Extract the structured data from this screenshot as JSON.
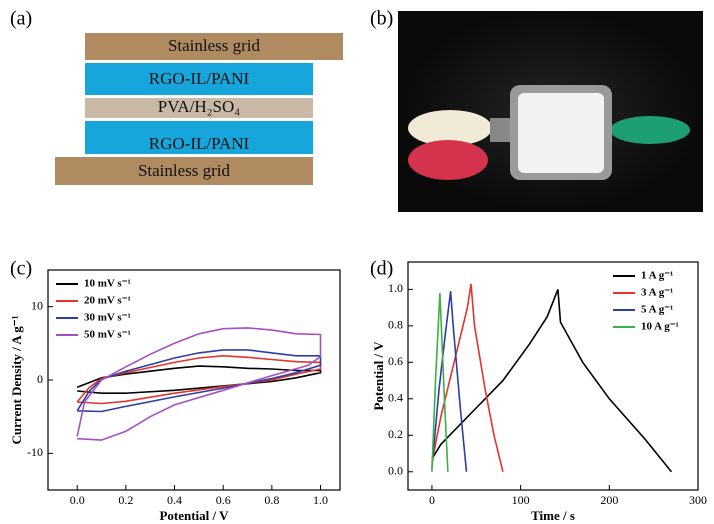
{
  "figure": {
    "a": {
      "label": "(a)",
      "layers": [
        "Stainless grid",
        "RGO-IL/PANI",
        "PVA/H₂SO₄",
        "RGO-IL/PANI",
        "Stainless grid"
      ]
    },
    "b": {
      "label": "(b)"
    }
  },
  "chart_data": [
    {
      "type": "line",
      "panel_label": "(c)",
      "x_label": "Potential / V",
      "y_label": "Current Density / A g⁻¹",
      "xlim": [
        -0.12,
        1.08
      ],
      "ylim": [
        -15,
        15
      ],
      "xticks": [
        {
          "value": 0,
          "label": "0.0"
        },
        {
          "value": 0.2,
          "label": "0.2"
        },
        {
          "value": 0.4,
          "label": "0.4"
        },
        {
          "value": 0.6,
          "label": "0.6"
        },
        {
          "value": 0.8,
          "label": "0.8"
        },
        {
          "value": 1,
          "label": "1.0"
        }
      ],
      "yticks": [
        -10,
        0,
        10
      ],
      "legend": "upper left",
      "series": [
        {
          "name": "10 mV s⁻¹",
          "color": "#000000",
          "x": [
            0,
            0.1,
            0.2,
            0.3,
            0.4,
            0.5,
            0.6,
            0.7,
            0.8,
            0.9,
            1.0,
            1.0,
            0.9,
            0.8,
            0.6,
            0.4,
            0.2,
            0.1,
            0.0
          ],
          "values": [
            -1.0,
            0.3,
            0.8,
            1.2,
            1.6,
            1.9,
            1.8,
            1.6,
            1.5,
            1.3,
            1.3,
            1.0,
            0.3,
            -0.2,
            -0.8,
            -1.4,
            -1.8,
            -1.8,
            -1.5
          ]
        },
        {
          "name": "20 mV s⁻¹",
          "color": "#e8322b",
          "x": [
            0,
            0.05,
            0.1,
            0.2,
            0.3,
            0.4,
            0.5,
            0.6,
            0.7,
            0.8,
            0.9,
            1.0,
            1.0,
            0.9,
            0.8,
            0.6,
            0.4,
            0.2,
            0.1,
            0.0
          ],
          "values": [
            -3.0,
            -1.0,
            0.2,
            1.0,
            1.7,
            2.4,
            3.0,
            3.3,
            3.1,
            2.8,
            2.5,
            2.4,
            1.5,
            0.8,
            0,
            -0.9,
            -1.8,
            -2.9,
            -3.2,
            -3.0
          ]
        },
        {
          "name": "30 mV s⁻¹",
          "color": "#2b3ea6",
          "x": [
            0,
            0.05,
            0.1,
            0.2,
            0.3,
            0.4,
            0.5,
            0.6,
            0.7,
            0.8,
            0.9,
            1.0,
            1.0,
            0.9,
            0.8,
            0.6,
            0.4,
            0.2,
            0.1,
            0.0
          ],
          "values": [
            -4.2,
            -1.5,
            0.1,
            1.2,
            2.1,
            3.0,
            3.7,
            4.1,
            4.1,
            3.7,
            3.3,
            3.3,
            2.0,
            1.0,
            0.2,
            -1.1,
            -2.3,
            -3.6,
            -4.3,
            -4.2
          ]
        },
        {
          "name": "50 mV s⁻¹",
          "color": "#a64fc4",
          "x": [
            0,
            0.03,
            0.1,
            0.2,
            0.3,
            0.4,
            0.5,
            0.6,
            0.7,
            0.8,
            0.9,
            1.0,
            1.0,
            0.95,
            0.8,
            0.6,
            0.4,
            0.3,
            0.2,
            0.1,
            0.0
          ],
          "values": [
            -7.7,
            -3.0,
            0,
            1.8,
            3.5,
            5.0,
            6.3,
            7.0,
            7.1,
            6.8,
            6.3,
            6.2,
            3.2,
            2.0,
            0.6,
            -1.4,
            -3.4,
            -5.0,
            -7.0,
            -8.2,
            -8.0
          ]
        }
      ]
    },
    {
      "type": "line",
      "panel_label": "(d)",
      "x_label": "Time / s",
      "y_label": "Potential / V",
      "xlim": [
        -27,
        300
      ],
      "ylim": [
        -0.1,
        1.15
      ],
      "xticks": [
        0,
        100,
        200,
        300
      ],
      "yticks": [
        {
          "value": 0,
          "label": "0.0"
        },
        {
          "value": 0.2,
          "label": "0.2"
        },
        {
          "value": 0.4,
          "label": "0.4"
        },
        {
          "value": 0.6,
          "label": "0.6"
        },
        {
          "value": 0.8,
          "label": "0.8"
        },
        {
          "value": 1,
          "label": "1.0"
        }
      ],
      "legend": "upper right",
      "series": [
        {
          "name": "1 A g⁻¹",
          "color": "#000000",
          "x": [
            0,
            10,
            40,
            80,
            110,
            130,
            142,
            145,
            170,
            200,
            240,
            270
          ],
          "values": [
            0.07,
            0.15,
            0.3,
            0.5,
            0.7,
            0.85,
            1.0,
            0.82,
            0.6,
            0.4,
            0.18,
            0.0
          ]
        },
        {
          "name": "3 A g⁻¹",
          "color": "#e8322b",
          "x": [
            0,
            10,
            25,
            40,
            44,
            48,
            60,
            70,
            80
          ],
          "values": [
            0.05,
            0.3,
            0.6,
            0.9,
            1.03,
            0.8,
            0.45,
            0.2,
            0.0
          ]
        },
        {
          "name": "5 A g⁻¹",
          "color": "#2b3ea6",
          "x": [
            0,
            8,
            15,
            21,
            24,
            32,
            39
          ],
          "values": [
            0.02,
            0.45,
            0.75,
            0.99,
            0.8,
            0.35,
            0.0
          ]
        },
        {
          "name": "10 A g⁻¹",
          "color": "#3cb043",
          "x": [
            0,
            4,
            9,
            11,
            14,
            18
          ],
          "values": [
            0.0,
            0.5,
            0.98,
            0.75,
            0.4,
            0.0
          ]
        }
      ]
    }
  ]
}
